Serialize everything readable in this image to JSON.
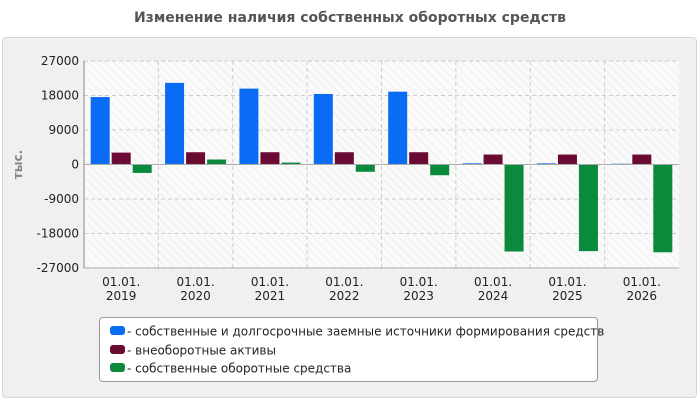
{
  "chart_data": {
    "type": "bar",
    "title": "Изменение наличия собственных оборотных средств",
    "ylabel": "тыс.",
    "xlabel": "",
    "categories": [
      {
        "line1": "01.01.",
        "line2": "2019"
      },
      {
        "line1": "01.01.",
        "line2": "2020"
      },
      {
        "line1": "01.01.",
        "line2": "2021"
      },
      {
        "line1": "01.01.",
        "line2": "2022"
      },
      {
        "line1": "01.01.",
        "line2": "2023"
      },
      {
        "line1": "01.01.",
        "line2": "2024"
      },
      {
        "line1": "01.01.",
        "line2": "2025"
      },
      {
        "line1": "01.01.",
        "line2": "2026"
      }
    ],
    "ylim": [
      -27000,
      27000
    ],
    "yticks": [
      27000,
      18000,
      9000,
      0,
      -9000,
      -18000,
      -27000
    ],
    "ytick_labels": [
      "27000",
      "18000",
      "9000",
      "0",
      "-9000",
      "-18000",
      "-27000"
    ],
    "grid": true,
    "legend_position": "bottom",
    "series": [
      {
        "name": "- собственные и долгосрочные заемные источники формирования средств",
        "color": "#0a6cf5",
        "values": [
          17600,
          21300,
          19800,
          18400,
          19000,
          300,
          300,
          200
        ]
      },
      {
        "name": "- внеоборотные активы",
        "color": "#6b0a32",
        "values": [
          3100,
          3200,
          3200,
          3200,
          3200,
          2600,
          2600,
          2600
        ]
      },
      {
        "name": "- собственные оборотные средства",
        "color": "#0a8a3a",
        "values": [
          -2200,
          1300,
          500,
          -1900,
          -2800,
          -22700,
          -22600,
          -22900
        ]
      }
    ]
  }
}
